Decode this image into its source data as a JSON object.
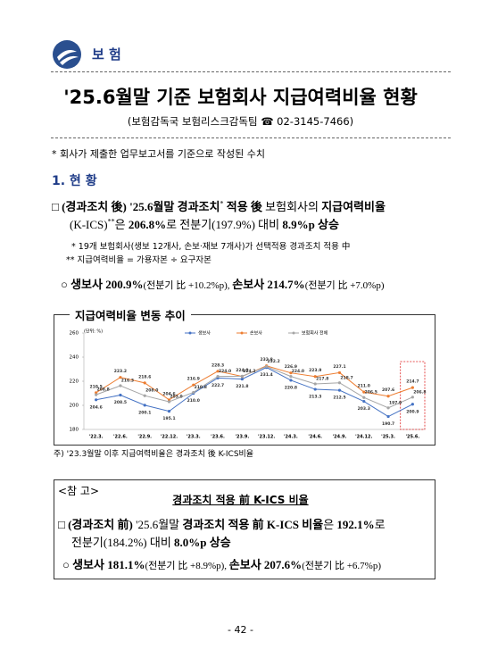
{
  "header": {
    "section": "보 험"
  },
  "title": "'25.6월말 기준 보험회사 지급여력비율 현황",
  "source": "(보험감독국 보험리스크감독팀 ☎ 02-3145-7466)",
  "note": "* 회사가 제출한 업무보고서를 기준으로 작성된 수치",
  "heading": "1. 현 황",
  "bullet1": [
    "□ (경과조치 後) '25.6월말 경과조치",
    "*",
    " 적용 後 ",
    "보험회사의",
    " 지급여력비율",
    "(K-ICS)",
    "**",
    "은 ",
    "206.8%",
    "로 전분기(197.9%) 대비 ",
    "8.9%p 상승"
  ],
  "footnotes": [
    "* 19개 보험회사(생보 12개사, 손보·재보 7개사)가 선택적용 경과조치 적용 中",
    "** 지급여력비율 = 가용자본 ÷ 요구자본"
  ],
  "sub1": [
    "○ 생보사 200.9%",
    "(전분기 比 +10.2%p), ",
    "손보사 214.7%",
    "(전분기 比 +7.0%p)"
  ],
  "chart_box_title": "지급여력비율 변동 추이",
  "chart_data": {
    "type": "line",
    "unit": "(단위: %)",
    "categories": [
      "'22.3.",
      "'22.6.",
      "'22.9.",
      "'22.12.",
      "'23.3.",
      "'23.6.",
      "'23.9.",
      "'23.12.",
      "'24.3.",
      "'24.6.",
      "'24.9.",
      "'24.12.",
      "'25.3.",
      "'25.6."
    ],
    "series": [
      {
        "name": "생보사",
        "color": "#4472c4",
        "values": [
          204.6,
          208.5,
          200.1,
          195.1,
          210.0,
          222.7,
          221.8,
          231.4,
          220.8,
          213.3,
          212.5,
          203.3,
          190.7,
          200.9
        ],
        "value_labels": [
          "204.6",
          "208.5",
          "200.1",
          "195.1",
          "210.0",
          "222.7",
          "221.8",
          "231.4",
          "220.8",
          "213.3",
          "212.5",
          "203.3",
          "190.7",
          "200.9"
        ]
      },
      {
        "name": "손보사",
        "color": "#ed7d31",
        "values": [
          210.5,
          223.2,
          218.6,
          204.6,
          216.9,
          228.3,
          224.0,
          232.8,
          226.9,
          223.9,
          227.1,
          211.0,
          207.6,
          214.7
        ],
        "value_labels": [
          "210.5",
          "223.2",
          "218.6",
          "204.6",
          "216.9",
          "228.3",
          "224.0",
          "232.8",
          "226.9",
          "223.9",
          "227.1",
          "211.0",
          "207.6",
          "214.7"
        ]
      },
      {
        "name": "보험회사 전체",
        "color": "#a5a5a5",
        "values": [
          208.8,
          216.3,
          208.0,
          203.0,
          210.8,
          224.0,
          224.2,
          232.2,
          224.0,
          217.8,
          218.7,
          206.5,
          197.9,
          206.8
        ],
        "value_labels": [
          "208.8",
          "216.3",
          "208.0",
          "203.0",
          "210.8",
          "224.0",
          "224.2",
          "232.2",
          "224.0",
          "217.8",
          "218.7",
          "206.5",
          "197.9",
          "206.8"
        ]
      }
    ],
    "ylim": [
      180,
      260
    ],
    "yticks": [
      180,
      200,
      220,
      240,
      260
    ],
    "grid": false,
    "legend": "top"
  },
  "chart_footnote": "주) '23.3월말 이후 지급여력비율은 경과조치 後 K-ICS비율",
  "reference": {
    "label": "<참 고>",
    "title": "경과조치 적용 前 K-ICS 비율",
    "bullet": [
      "□ (경과조치 前) ",
      "'25.6월말 ",
      "경과조치 적용 前 K-ICS 비율",
      "은 ",
      "192.1%",
      "로",
      "전분기(184.2%) 대비 ",
      "8.0%p 상승"
    ],
    "sub": [
      "○ 생보사 181.1%",
      "(전분기 比 +8.9%p), ",
      "손보사 207.6%",
      "(전분기 比 +6.7%p)"
    ]
  },
  "page_number": "- 42 -"
}
